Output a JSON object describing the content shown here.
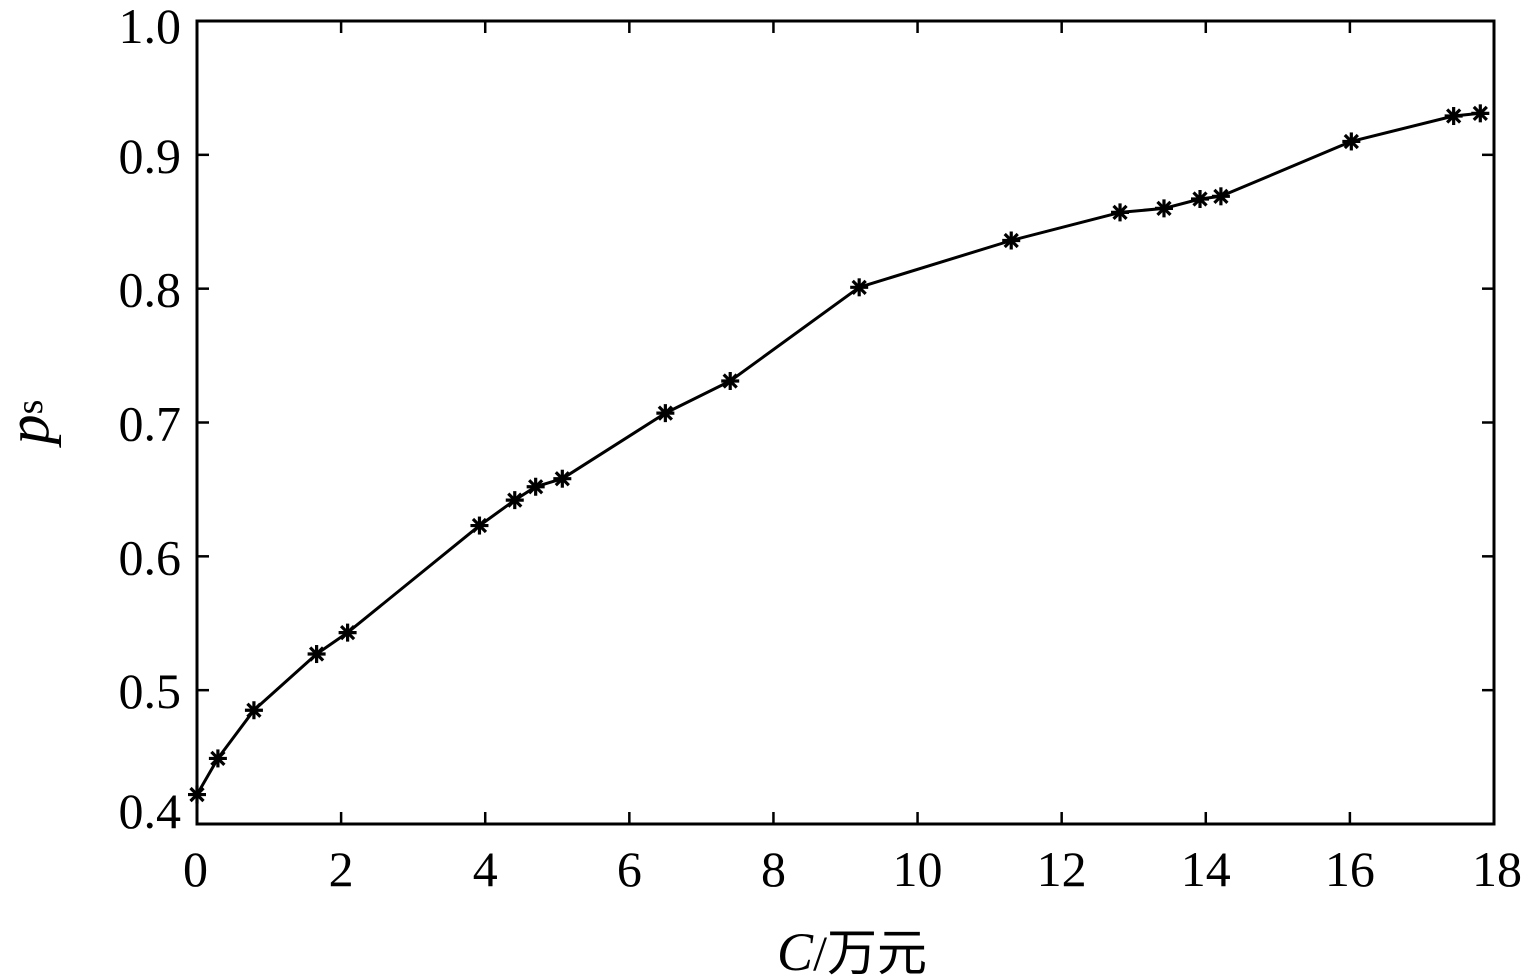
{
  "chart_data": {
    "type": "line",
    "title": "",
    "xlabel_var": "C",
    "xlabel_unit": "/万元",
    "ylabel_var": "p",
    "ylabel_sub": "s",
    "xlim": [
      0,
      18
    ],
    "ylim": [
      0.4,
      1.0
    ],
    "x_ticks": [
      0,
      2,
      4,
      6,
      8,
      10,
      12,
      14,
      16,
      18
    ],
    "x_tick_labels": [
      "0",
      "2",
      "4",
      "6",
      "8",
      "10",
      "12",
      "14",
      "16",
      "18"
    ],
    "y_ticks": [
      0.4,
      0.5,
      0.6,
      0.7,
      0.8,
      0.9,
      1.0
    ],
    "y_tick_labels": [
      "0.4",
      "0.5",
      "0.6",
      "0.7",
      "0.8",
      "0.9",
      "1.0"
    ],
    "grid": false,
    "marker": "asterisk",
    "line_color": "#000000",
    "series": [
      {
        "x": [
          0.0,
          0.29,
          0.79,
          1.66,
          2.09,
          3.92,
          4.41,
          4.7,
          5.07,
          6.5,
          7.4,
          9.19,
          11.3,
          12.81,
          13.42,
          13.92,
          14.21,
          16.02,
          17.44,
          17.81
        ],
        "y": [
          0.422,
          0.449,
          0.485,
          0.527,
          0.543,
          0.623,
          0.642,
          0.652,
          0.658,
          0.707,
          0.731,
          0.801,
          0.836,
          0.857,
          0.86,
          0.867,
          0.869,
          0.91,
          0.929,
          0.931
        ]
      }
    ]
  }
}
